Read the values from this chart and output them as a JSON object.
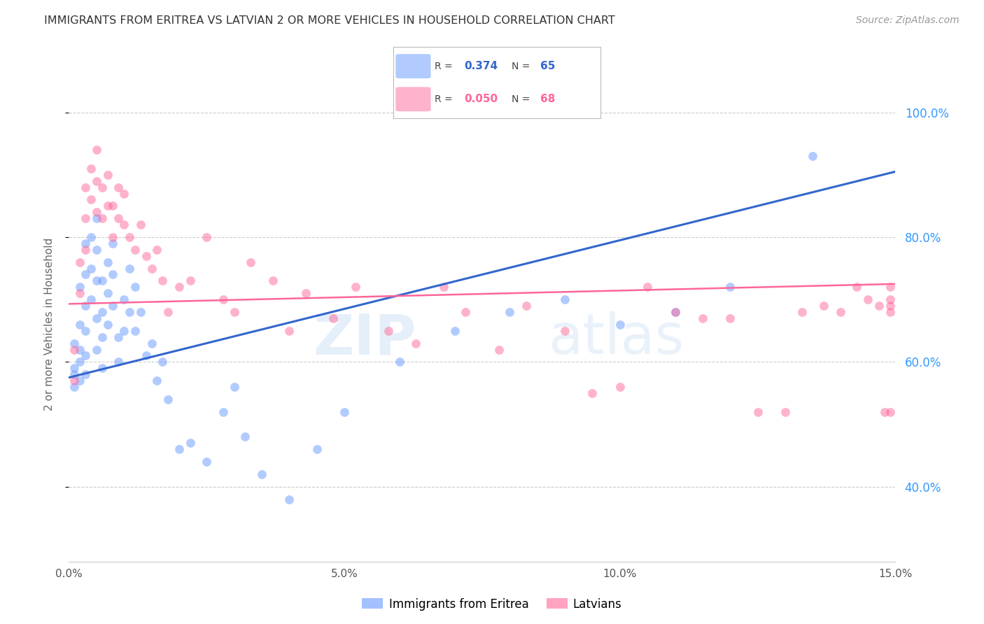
{
  "title": "IMMIGRANTS FROM ERITREA VS LATVIAN 2 OR MORE VEHICLES IN HOUSEHOLD CORRELATION CHART",
  "source": "Source: ZipAtlas.com",
  "ylabel_text": "2 or more Vehicles in Household",
  "watermark": "ZIPatlas",
  "xmin": 0.0,
  "xmax": 0.15,
  "ymin": 0.28,
  "ymax": 1.04,
  "x_ticks": [
    0.0,
    0.05,
    0.1,
    0.15
  ],
  "x_tick_labels": [
    "0.0%",
    "5.0%",
    "10.0%",
    "15.0%"
  ],
  "y_ticks": [
    0.4,
    0.6,
    0.8,
    1.0
  ],
  "y_tick_labels": [
    "40.0%",
    "60.0%",
    "80.0%",
    "100.0%"
  ],
  "series1_label": "Immigrants from Eritrea",
  "series2_label": "Latvians",
  "series1_R": "0.374",
  "series1_N": "65",
  "series2_R": "0.050",
  "series2_N": "68",
  "series1_color": "#6699ff",
  "series2_color": "#ff6699",
  "line1_color": "#3366cc",
  "line2_color": "#ff6699",
  "background_color": "#ffffff",
  "grid_color": "#cccccc",
  "title_color": "#333333",
  "right_axis_color": "#3399ff",
  "series1_x": [
    0.001,
    0.001,
    0.001,
    0.001,
    0.002,
    0.002,
    0.002,
    0.002,
    0.002,
    0.003,
    0.003,
    0.003,
    0.003,
    0.003,
    0.003,
    0.004,
    0.004,
    0.004,
    0.005,
    0.005,
    0.005,
    0.005,
    0.005,
    0.006,
    0.006,
    0.006,
    0.006,
    0.007,
    0.007,
    0.007,
    0.008,
    0.008,
    0.008,
    0.009,
    0.009,
    0.01,
    0.01,
    0.011,
    0.011,
    0.012,
    0.012,
    0.013,
    0.014,
    0.015,
    0.016,
    0.017,
    0.018,
    0.02,
    0.022,
    0.025,
    0.028,
    0.03,
    0.032,
    0.035,
    0.04,
    0.045,
    0.05,
    0.06,
    0.07,
    0.08,
    0.09,
    0.1,
    0.11,
    0.12,
    0.135
  ],
  "series1_y": [
    0.59,
    0.56,
    0.63,
    0.58,
    0.72,
    0.66,
    0.62,
    0.57,
    0.6,
    0.79,
    0.74,
    0.69,
    0.65,
    0.61,
    0.58,
    0.8,
    0.75,
    0.7,
    0.83,
    0.78,
    0.73,
    0.67,
    0.62,
    0.73,
    0.68,
    0.64,
    0.59,
    0.76,
    0.71,
    0.66,
    0.79,
    0.74,
    0.69,
    0.64,
    0.6,
    0.7,
    0.65,
    0.75,
    0.68,
    0.72,
    0.65,
    0.68,
    0.61,
    0.63,
    0.57,
    0.6,
    0.54,
    0.46,
    0.47,
    0.44,
    0.52,
    0.56,
    0.48,
    0.42,
    0.38,
    0.46,
    0.52,
    0.6,
    0.65,
    0.68,
    0.7,
    0.66,
    0.68,
    0.72,
    0.93
  ],
  "series2_x": [
    0.001,
    0.001,
    0.002,
    0.002,
    0.003,
    0.003,
    0.003,
    0.004,
    0.004,
    0.005,
    0.005,
    0.005,
    0.006,
    0.006,
    0.007,
    0.007,
    0.008,
    0.008,
    0.009,
    0.009,
    0.01,
    0.01,
    0.011,
    0.012,
    0.013,
    0.014,
    0.015,
    0.016,
    0.017,
    0.018,
    0.02,
    0.022,
    0.025,
    0.028,
    0.03,
    0.033,
    0.037,
    0.04,
    0.043,
    0.048,
    0.052,
    0.058,
    0.063,
    0.068,
    0.072,
    0.078,
    0.083,
    0.09,
    0.095,
    0.1,
    0.105,
    0.11,
    0.115,
    0.12,
    0.125,
    0.13,
    0.133,
    0.137,
    0.14,
    0.143,
    0.145,
    0.147,
    0.148,
    0.149,
    0.149,
    0.149,
    0.149,
    0.149
  ],
  "series2_y": [
    0.62,
    0.57,
    0.76,
    0.71,
    0.88,
    0.83,
    0.78,
    0.91,
    0.86,
    0.94,
    0.89,
    0.84,
    0.88,
    0.83,
    0.9,
    0.85,
    0.85,
    0.8,
    0.88,
    0.83,
    0.87,
    0.82,
    0.8,
    0.78,
    0.82,
    0.77,
    0.75,
    0.78,
    0.73,
    0.68,
    0.72,
    0.73,
    0.8,
    0.7,
    0.68,
    0.76,
    0.73,
    0.65,
    0.71,
    0.67,
    0.72,
    0.65,
    0.63,
    0.72,
    0.68,
    0.62,
    0.69,
    0.65,
    0.55,
    0.56,
    0.72,
    0.68,
    0.67,
    0.67,
    0.52,
    0.52,
    0.68,
    0.69,
    0.68,
    0.72,
    0.7,
    0.69,
    0.52,
    0.52,
    0.68,
    0.69,
    0.7,
    0.72
  ],
  "line1_x0": 0.0,
  "line1_y0": 0.575,
  "line1_x1": 0.15,
  "line1_y1": 0.905,
  "line2_x0": 0.0,
  "line2_y0": 0.693,
  "line2_x1": 0.15,
  "line2_y1": 0.725
}
